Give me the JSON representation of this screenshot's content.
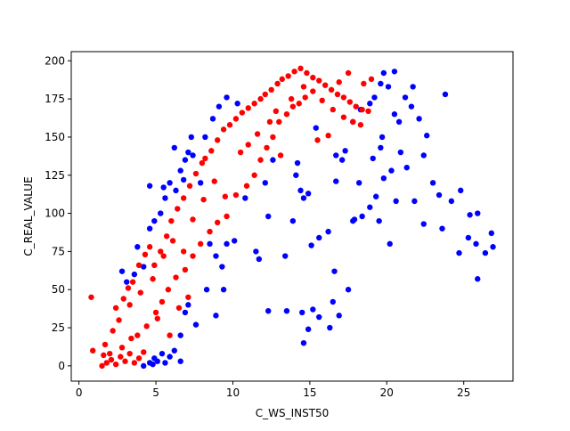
{
  "chart_data": {
    "type": "scatter",
    "title": "",
    "xlabel": "C_WS_INST50",
    "ylabel": "C_REAL_VALUE",
    "xlim": [
      -0.5,
      28.2
    ],
    "ylim": [
      -10,
      206
    ],
    "xticks": [
      0,
      5,
      10,
      15,
      20,
      25
    ],
    "yticks": [
      0,
      25,
      50,
      75,
      100,
      125,
      150,
      175,
      200
    ],
    "grid": false,
    "legend": "none",
    "series": [
      {
        "color": "#0000ff",
        "points": [
          [
            4.2,
            0
          ],
          [
            4.6,
            2
          ],
          [
            4.9,
            5
          ],
          [
            5.1,
            3
          ],
          [
            5.4,
            8
          ],
          [
            5.6,
            2
          ],
          [
            5.9,
            6
          ],
          [
            6.2,
            10
          ],
          [
            6.6,
            3
          ],
          [
            4.8,
            1
          ],
          [
            2.8,
            62
          ],
          [
            3.1,
            55
          ],
          [
            3.6,
            60
          ],
          [
            3.8,
            78
          ],
          [
            4.2,
            65
          ],
          [
            4.6,
            90
          ],
          [
            4.9,
            95
          ],
          [
            5.3,
            100
          ],
          [
            5.6,
            110
          ],
          [
            5.9,
            120
          ],
          [
            6.3,
            115
          ],
          [
            6.6,
            128
          ],
          [
            6.9,
            135
          ],
          [
            7.1,
            140
          ],
          [
            7.4,
            138
          ],
          [
            8.2,
            150
          ],
          [
            8.7,
            162
          ],
          [
            9.1,
            170
          ],
          [
            9.6,
            176
          ],
          [
            10.3,
            172
          ],
          [
            4.6,
            118
          ],
          [
            5.5,
            117
          ],
          [
            6.2,
            143
          ],
          [
            7.3,
            150
          ],
          [
            6.8,
            122
          ],
          [
            7.9,
            120
          ],
          [
            8.5,
            80
          ],
          [
            8.9,
            72
          ],
          [
            9.3,
            65
          ],
          [
            9.6,
            80
          ],
          [
            6.6,
            20
          ],
          [
            6.9,
            35
          ],
          [
            7.1,
            40
          ],
          [
            7.6,
            27
          ],
          [
            8.3,
            50
          ],
          [
            8.9,
            33
          ],
          [
            9.4,
            50
          ],
          [
            10.1,
            82
          ],
          [
            10.8,
            110
          ],
          [
            11.5,
            75
          ],
          [
            11.7,
            70
          ],
          [
            12.1,
            120
          ],
          [
            12.3,
            98
          ],
          [
            12.6,
            135
          ],
          [
            13.4,
            72
          ],
          [
            13.9,
            95
          ],
          [
            14.1,
            125
          ],
          [
            14.4,
            115
          ],
          [
            14.6,
            110
          ],
          [
            14.9,
            113
          ],
          [
            12.3,
            36
          ],
          [
            13.5,
            36
          ],
          [
            14.5,
            35
          ],
          [
            15.2,
            37
          ],
          [
            15.6,
            32
          ],
          [
            16.3,
            25
          ],
          [
            16.9,
            33
          ],
          [
            14.6,
            15
          ],
          [
            14.9,
            24
          ],
          [
            16.5,
            42
          ],
          [
            16.6,
            62
          ],
          [
            17.5,
            50
          ],
          [
            15.1,
            79
          ],
          [
            15.6,
            84
          ],
          [
            16.2,
            88
          ],
          [
            17.8,
            95
          ],
          [
            18.4,
            98
          ],
          [
            18.9,
            104
          ],
          [
            19.5,
            95
          ],
          [
            20.2,
            80
          ],
          [
            16.7,
            121
          ],
          [
            17.3,
            141
          ],
          [
            17.8,
            160
          ],
          [
            18.3,
            168
          ],
          [
            18.9,
            172
          ],
          [
            19.2,
            176
          ],
          [
            19.6,
            185
          ],
          [
            20.1,
            183
          ],
          [
            20.5,
            165
          ],
          [
            20.8,
            160
          ],
          [
            21.2,
            176
          ],
          [
            21.6,
            170
          ],
          [
            22.1,
            162
          ],
          [
            22.6,
            151
          ],
          [
            23.0,
            120
          ],
          [
            23.4,
            112
          ],
          [
            24.2,
            108
          ],
          [
            24.8,
            115
          ],
          [
            25.4,
            99
          ],
          [
            25.9,
            100
          ],
          [
            21.8,
            108
          ],
          [
            22.4,
            93
          ],
          [
            23.6,
            90
          ],
          [
            24.7,
            74
          ],
          [
            25.3,
            84
          ],
          [
            25.8,
            80
          ],
          [
            26.4,
            74
          ],
          [
            26.9,
            78
          ],
          [
            26.8,
            87
          ],
          [
            25.9,
            57
          ],
          [
            19.1,
            136
          ],
          [
            19.7,
            150
          ],
          [
            20.3,
            128
          ],
          [
            20.9,
            140
          ],
          [
            21.3,
            130
          ],
          [
            22.4,
            138
          ],
          [
            19.3,
            111
          ],
          [
            18.2,
            120
          ],
          [
            17.9,
            96
          ],
          [
            19.6,
            143
          ],
          [
            19.8,
            192
          ],
          [
            20.5,
            193
          ],
          [
            23.8,
            178
          ],
          [
            21.7,
            183
          ],
          [
            20.6,
            108
          ],
          [
            19.8,
            123
          ],
          [
            17.1,
            135
          ],
          [
            16.7,
            138
          ],
          [
            15.4,
            156
          ],
          [
            14.2,
            133
          ]
        ]
      },
      {
        "color": "#ff0000",
        "points": [
          [
            1.5,
            0
          ],
          [
            1.8,
            2
          ],
          [
            2.1,
            4
          ],
          [
            2.4,
            1
          ],
          [
            2.7,
            6
          ],
          [
            3.0,
            3
          ],
          [
            3.3,
            8
          ],
          [
            3.6,
            2
          ],
          [
            3.9,
            5
          ],
          [
            4.2,
            9
          ],
          [
            0.8,
            45
          ],
          [
            0.9,
            10
          ],
          [
            1.7,
            14
          ],
          [
            2.2,
            23
          ],
          [
            2.4,
            38
          ],
          [
            2.9,
            44
          ],
          [
            3.2,
            51
          ],
          [
            3.5,
            55
          ],
          [
            3.9,
            66
          ],
          [
            4.3,
            73
          ],
          [
            4.6,
            78
          ],
          [
            4.9,
            66
          ],
          [
            5.3,
            75
          ],
          [
            5.7,
            85
          ],
          [
            6.0,
            95
          ],
          [
            6.4,
            103
          ],
          [
            6.8,
            110
          ],
          [
            7.2,
            118
          ],
          [
            7.6,
            126
          ],
          [
            8.0,
            133
          ],
          [
            2.6,
            30
          ],
          [
            3.3,
            40
          ],
          [
            4.0,
            48
          ],
          [
            4.8,
            57
          ],
          [
            5.5,
            72
          ],
          [
            6.1,
            82
          ],
          [
            6.8,
            75
          ],
          [
            7.4,
            96
          ],
          [
            8.1,
            109
          ],
          [
            8.8,
            121
          ],
          [
            8.2,
            136
          ],
          [
            8.6,
            141
          ],
          [
            9.0,
            148
          ],
          [
            9.4,
            155
          ],
          [
            9.8,
            158
          ],
          [
            10.2,
            162
          ],
          [
            10.6,
            166
          ],
          [
            11.0,
            169
          ],
          [
            11.4,
            172
          ],
          [
            11.8,
            175
          ],
          [
            12.1,
            178
          ],
          [
            12.5,
            181
          ],
          [
            12.9,
            185
          ],
          [
            13.2,
            188
          ],
          [
            13.6,
            190
          ],
          [
            14.0,
            193
          ],
          [
            14.4,
            195
          ],
          [
            14.8,
            192
          ],
          [
            15.2,
            189
          ],
          [
            15.6,
            187
          ],
          [
            16.0,
            184
          ],
          [
            16.4,
            181
          ],
          [
            16.8,
            178
          ],
          [
            17.2,
            176
          ],
          [
            17.6,
            173
          ],
          [
            18.0,
            170
          ],
          [
            18.4,
            168
          ],
          [
            18.8,
            167
          ],
          [
            19.0,
            188
          ],
          [
            18.5,
            185
          ],
          [
            9.5,
            111
          ],
          [
            10.2,
            112
          ],
          [
            10.9,
            118
          ],
          [
            11.4,
            125
          ],
          [
            11.8,
            135
          ],
          [
            12.2,
            143
          ],
          [
            12.6,
            150
          ],
          [
            13.0,
            160
          ],
          [
            13.5,
            165
          ],
          [
            13.9,
            170
          ],
          [
            14.3,
            172
          ],
          [
            14.7,
            176
          ],
          [
            15.2,
            180
          ],
          [
            15.8,
            174
          ],
          [
            16.5,
            168
          ],
          [
            17.2,
            163
          ],
          [
            17.8,
            160
          ],
          [
            18.3,
            158
          ],
          [
            15.5,
            148
          ],
          [
            16.2,
            151
          ],
          [
            5.0,
            35
          ],
          [
            5.4,
            42
          ],
          [
            5.8,
            50
          ],
          [
            6.3,
            58
          ],
          [
            6.9,
            63
          ],
          [
            7.4,
            72
          ],
          [
            7.9,
            80
          ],
          [
            8.5,
            88
          ],
          [
            9.0,
            94
          ],
          [
            9.6,
            98
          ],
          [
            3.8,
            20
          ],
          [
            4.4,
            26
          ],
          [
            5.1,
            31
          ],
          [
            5.9,
            20
          ],
          [
            6.5,
            38
          ],
          [
            7.1,
            45
          ],
          [
            2.0,
            8
          ],
          [
            2.8,
            12
          ],
          [
            3.4,
            18
          ],
          [
            1.6,
            7
          ],
          [
            10.5,
            140
          ],
          [
            11.0,
            145
          ],
          [
            11.6,
            152
          ],
          [
            12.4,
            160
          ],
          [
            12.8,
            167
          ],
          [
            13.1,
            138
          ],
          [
            13.8,
            175
          ],
          [
            14.6,
            183
          ],
          [
            16.9,
            186
          ],
          [
            17.5,
            192
          ]
        ]
      }
    ]
  }
}
